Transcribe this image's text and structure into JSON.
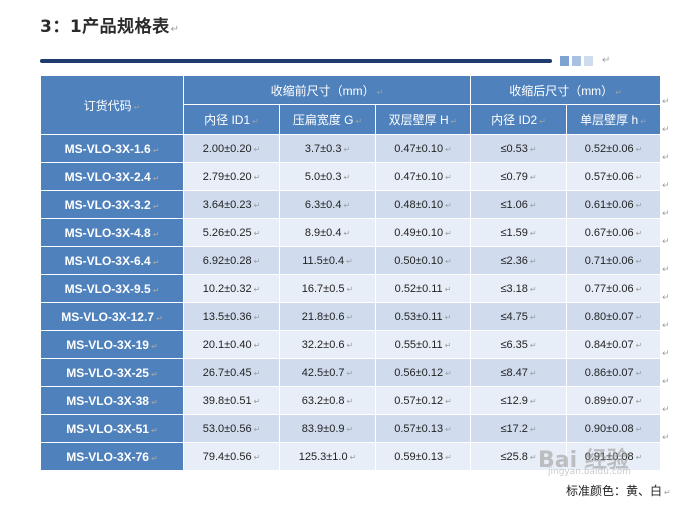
{
  "title": "3：1产品规格表",
  "para_mark": "↵",
  "rule_dot_colors": [
    "#7fa3d1",
    "#a9c2e2",
    "#cfdcee"
  ],
  "table": {
    "code_header": "订货代码",
    "group_before": "收缩前尺寸（mm）",
    "group_after": "收缩后尺寸（mm）",
    "columns": [
      "内径 ID1",
      "压扁宽度 G",
      "双层壁厚 H",
      "内径 ID2",
      "单层壁厚 h"
    ],
    "rows": [
      {
        "code": "MS-VLO-3X-1.6",
        "id1": "2.00±0.20",
        "g": "3.7±0.3",
        "hh": "0.47±0.10",
        "id2": "≤0.53",
        "h": "0.52±0.06"
      },
      {
        "code": "MS-VLO-3X-2.4",
        "id1": "2.79±0.20",
        "g": "5.0±0.3",
        "hh": "0.47±0.10",
        "id2": "≤0.79",
        "h": "0.57±0.06"
      },
      {
        "code": "MS-VLO-3X-3.2",
        "id1": "3.64±0.23",
        "g": "6.3±0.4",
        "hh": "0.48±0.10",
        "id2": "≤1.06",
        "h": "0.61±0.06"
      },
      {
        "code": "MS-VLO-3X-4.8",
        "id1": "5.26±0.25",
        "g": "8.9±0.4",
        "hh": "0.49±0.10",
        "id2": "≤1.59",
        "h": "0.67±0.06"
      },
      {
        "code": "MS-VLO-3X-6.4",
        "id1": "6.92±0.28",
        "g": "11.5±0.4",
        "hh": "0.50±0.10",
        "id2": "≤2.36",
        "h": "0.71±0.06"
      },
      {
        "code": "MS-VLO-3X-9.5",
        "id1": "10.2±0.32",
        "g": "16.7±0.5",
        "hh": "0.52±0.11",
        "id2": "≤3.18",
        "h": "0.77±0.06"
      },
      {
        "code": "MS-VLO-3X-12.7",
        "id1": "13.5±0.36",
        "g": "21.8±0.6",
        "hh": "0.53±0.11",
        "id2": "≤4.75",
        "h": "0.80±0.07"
      },
      {
        "code": "MS-VLO-3X-19",
        "id1": "20.1±0.40",
        "g": "32.2±0.6",
        "hh": "0.55±0.11",
        "id2": "≤6.35",
        "h": "0.84±0.07"
      },
      {
        "code": "MS-VLO-3X-25",
        "id1": "26.7±0.45",
        "g": "42.5±0.7",
        "hh": "0.56±0.12",
        "id2": "≤8.47",
        "h": "0.86±0.07"
      },
      {
        "code": "MS-VLO-3X-38",
        "id1": "39.8±0.51",
        "g": "63.2±0.8",
        "hh": "0.57±0.12",
        "id2": "≤12.9",
        "h": "0.89±0.07"
      },
      {
        "code": "MS-VLO-3X-51",
        "id1": "53.0±0.56",
        "g": "83.9±0.9",
        "hh": "0.57±0.13",
        "id2": "≤17.2",
        "h": "0.90±0.08"
      },
      {
        "code": "MS-VLO-3X-76",
        "id1": "79.4±0.56",
        "g": "125.3±1.0",
        "hh": "0.59±0.13",
        "id2": "≤25.8",
        "h": "0.91±0.08"
      }
    ]
  },
  "footnote": "标准颜色：黄、白",
  "watermark": "Bai 经验",
  "watermark_sub": "jingyan.baidu.com",
  "colors": {
    "header_blue": "#4f81bd",
    "row_odd": "#d0dcee",
    "row_even": "#e8eef7",
    "rule_navy": "#1f3b6e"
  }
}
